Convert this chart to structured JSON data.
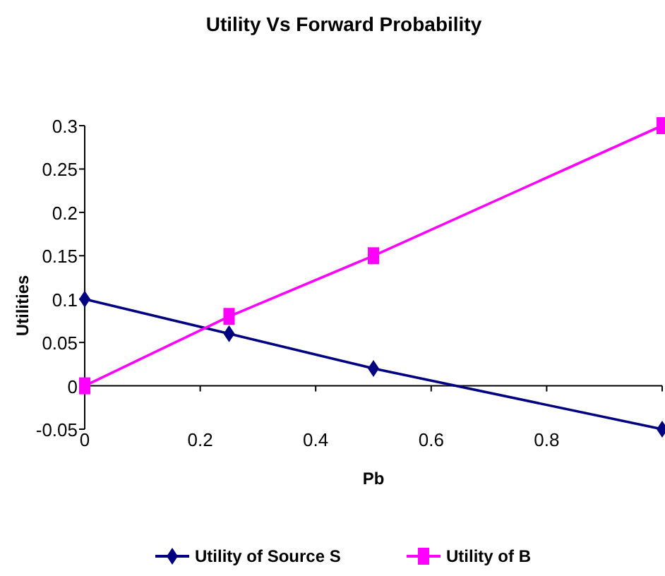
{
  "chart_data": {
    "type": "line",
    "title": "Utility Vs Forward Probability",
    "xlabel": "Pb",
    "ylabel": "Utilities",
    "x": [
      0,
      0.25,
      0.5,
      1
    ],
    "series": [
      {
        "name": "Utility of Source S",
        "color": "#000080",
        "values": [
          0.1,
          0.06,
          0.02,
          -0.05
        ],
        "marker": "diamond"
      },
      {
        "name": "Utility of B",
        "color": "#ff00ff",
        "values": [
          0,
          0.08,
          0.15,
          0.3
        ],
        "marker": "square"
      }
    ],
    "xlim": [
      0,
      1
    ],
    "xticks": [
      0,
      0.2,
      0.4,
      0.6,
      0.8,
      {
        "value": 1,
        "label": null
      }
    ],
    "ylim": [
      -0.05,
      0.3
    ],
    "yticks": [
      -0.05,
      0,
      0.05,
      0.1,
      0.15,
      0.2,
      0.25,
      0.3
    ],
    "grid": false,
    "legend": "bottom",
    "line_style": "solid"
  }
}
